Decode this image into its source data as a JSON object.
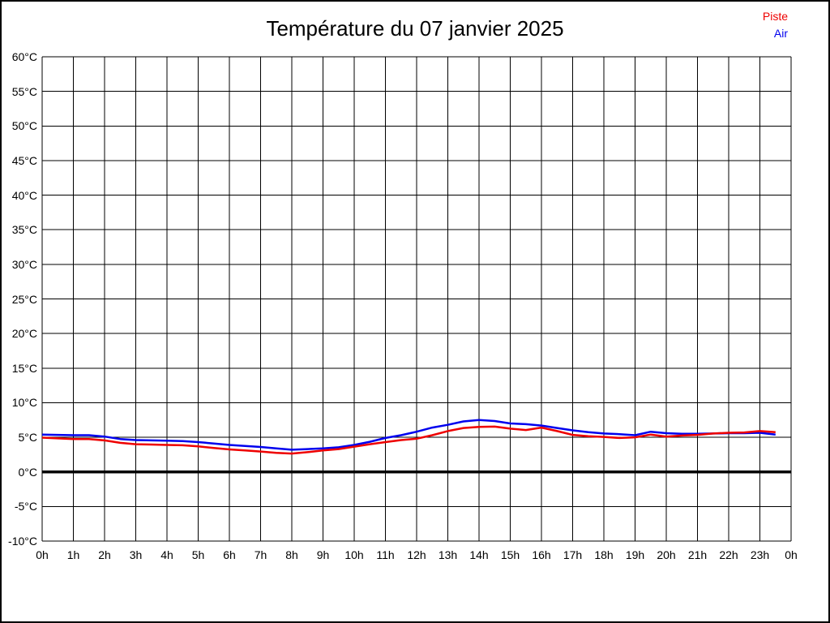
{
  "page": {
    "background_color": "#ffffff",
    "frame_border_color": "#000000"
  },
  "chart_data": {
    "type": "line",
    "title": "Température du 07 janvier 2025",
    "grid": "full",
    "grid_color": "#000000",
    "zero_line": {
      "value": 0,
      "style": "thick",
      "color": "#000000"
    },
    "x_axis": {
      "label": "",
      "start_hour": 0,
      "end_hour": 24,
      "tick_labels": [
        "0h",
        "1h",
        "2h",
        "3h",
        "4h",
        "5h",
        "6h",
        "7h",
        "8h",
        "9h",
        "10h",
        "11h",
        "12h",
        "13h",
        "14h",
        "15h",
        "16h",
        "17h",
        "18h",
        "19h",
        "20h",
        "21h",
        "22h",
        "23h",
        "0h"
      ]
    },
    "y_axis": {
      "label": "",
      "unit": "°C",
      "min": -10,
      "max": 60,
      "tick_step": 5,
      "tick_labels": [
        "60°C",
        "55°C",
        "50°C",
        "45°C",
        "40°C",
        "35°C",
        "30°C",
        "25°C",
        "20°C",
        "15°C",
        "10°C",
        "5°C",
        "0°C",
        "-5°C",
        "-10°C"
      ]
    },
    "legend": {
      "position": "top-right",
      "entries": [
        {
          "label": "Piste",
          "color": "#ee0000"
        },
        {
          "label": "Air",
          "color": "#0000ee"
        }
      ]
    },
    "series": [
      {
        "name": "Piste",
        "color": "#ee0000",
        "start_hour": 0,
        "step_hours": 0.5,
        "values": [
          4.95,
          4.85,
          4.75,
          4.75,
          4.55,
          4.2,
          4.0,
          3.95,
          3.9,
          3.85,
          3.7,
          3.45,
          3.25,
          3.1,
          2.95,
          2.75,
          2.65,
          2.85,
          3.1,
          3.3,
          3.65,
          4.0,
          4.3,
          4.6,
          4.8,
          5.3,
          5.9,
          6.35,
          6.5,
          6.55,
          6.25,
          6.05,
          6.4,
          5.9,
          5.35,
          5.15,
          5.05,
          4.9,
          5.0,
          5.4,
          5.1,
          5.25,
          5.35,
          5.55,
          5.65,
          5.7,
          5.9,
          5.75
        ]
      },
      {
        "name": "Air",
        "color": "#0000ee",
        "start_hour": 0,
        "step_hours": 0.5,
        "values": [
          5.4,
          5.35,
          5.3,
          5.3,
          5.1,
          4.75,
          4.6,
          4.55,
          4.5,
          4.45,
          4.3,
          4.1,
          3.9,
          3.75,
          3.6,
          3.4,
          3.2,
          3.3,
          3.4,
          3.55,
          3.9,
          4.35,
          4.9,
          5.3,
          5.8,
          6.4,
          6.8,
          7.3,
          7.5,
          7.35,
          7.0,
          6.9,
          6.7,
          6.35,
          6.0,
          5.75,
          5.55,
          5.45,
          5.3,
          5.8,
          5.6,
          5.5,
          5.5,
          5.55,
          5.6,
          5.6,
          5.65,
          5.4
        ]
      }
    ]
  }
}
